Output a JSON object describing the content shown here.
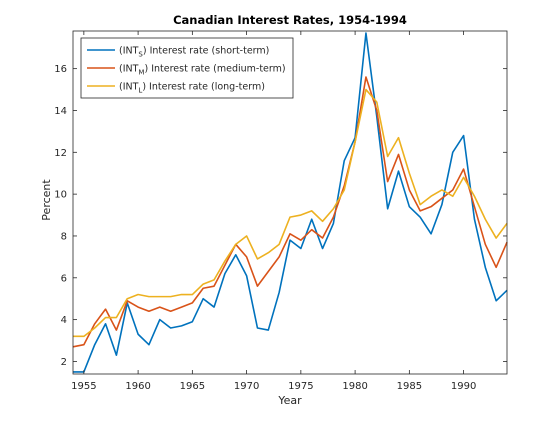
{
  "chart_data": {
    "type": "line",
    "title": "Canadian Interest Rates, 1954-1994",
    "xlabel": "Year",
    "ylabel": "Percent",
    "xlim": [
      1954,
      1994
    ],
    "ylim": [
      1.4,
      17.8
    ],
    "x_ticks": [
      1955,
      1960,
      1965,
      1970,
      1975,
      1980,
      1985,
      1990
    ],
    "y_ticks": [
      2,
      4,
      6,
      8,
      10,
      12,
      14,
      16
    ],
    "grid": false,
    "legend_position": "top-left",
    "x": [
      1954,
      1955,
      1956,
      1957,
      1958,
      1959,
      1960,
      1961,
      1962,
      1963,
      1964,
      1965,
      1966,
      1967,
      1968,
      1969,
      1970,
      1971,
      1972,
      1973,
      1974,
      1975,
      1976,
      1977,
      1978,
      1979,
      1980,
      1981,
      1982,
      1983,
      1984,
      1985,
      1986,
      1987,
      1988,
      1989,
      1990,
      1991,
      1992,
      1993,
      1994
    ],
    "series": [
      {
        "key": "short",
        "legend_prefix": "(INT",
        "legend_sub": "S",
        "legend_suffix": ") Interest rate (short-term)",
        "color": "#0072bd",
        "values": [
          1.5,
          1.5,
          2.8,
          3.8,
          2.3,
          4.8,
          3.3,
          2.8,
          4.0,
          3.6,
          3.7,
          3.9,
          5.0,
          4.6,
          6.2,
          7.1,
          6.1,
          3.6,
          3.5,
          5.3,
          7.8,
          7.4,
          8.8,
          7.4,
          8.6,
          11.6,
          12.7,
          17.7,
          13.7,
          9.3,
          11.1,
          9.4,
          8.9,
          8.1,
          9.5,
          12.0,
          12.8,
          8.8,
          6.5,
          4.9,
          5.4
        ]
      },
      {
        "key": "medium",
        "legend_prefix": "(INT",
        "legend_sub": "M",
        "legend_suffix": ") Interest rate (medium-term)",
        "color": "#d95319",
        "values": [
          2.7,
          2.8,
          3.8,
          4.5,
          3.5,
          4.9,
          4.6,
          4.4,
          4.6,
          4.4,
          4.6,
          4.8,
          5.5,
          5.6,
          6.6,
          7.6,
          7.0,
          5.6,
          6.3,
          7.0,
          8.1,
          7.8,
          8.3,
          7.9,
          8.9,
          10.4,
          12.5,
          15.6,
          14.0,
          10.6,
          11.9,
          10.2,
          9.2,
          9.4,
          9.8,
          10.2,
          11.2,
          9.4,
          7.6,
          6.5,
          7.7
        ]
      },
      {
        "key": "long",
        "legend_prefix": "(INT",
        "legend_sub": "L",
        "legend_suffix": ") Interest rate (long-term)",
        "color": "#edb120",
        "values": [
          3.2,
          3.2,
          3.6,
          4.1,
          4.1,
          5.0,
          5.2,
          5.1,
          5.1,
          5.1,
          5.2,
          5.2,
          5.7,
          5.9,
          6.8,
          7.6,
          8.0,
          6.9,
          7.2,
          7.6,
          8.9,
          9.0,
          9.2,
          8.7,
          9.3,
          10.2,
          12.5,
          15.0,
          14.4,
          11.8,
          12.7,
          11.0,
          9.5,
          9.9,
          10.2,
          9.9,
          10.8,
          9.9,
          8.8,
          7.9,
          8.6
        ]
      }
    ]
  }
}
